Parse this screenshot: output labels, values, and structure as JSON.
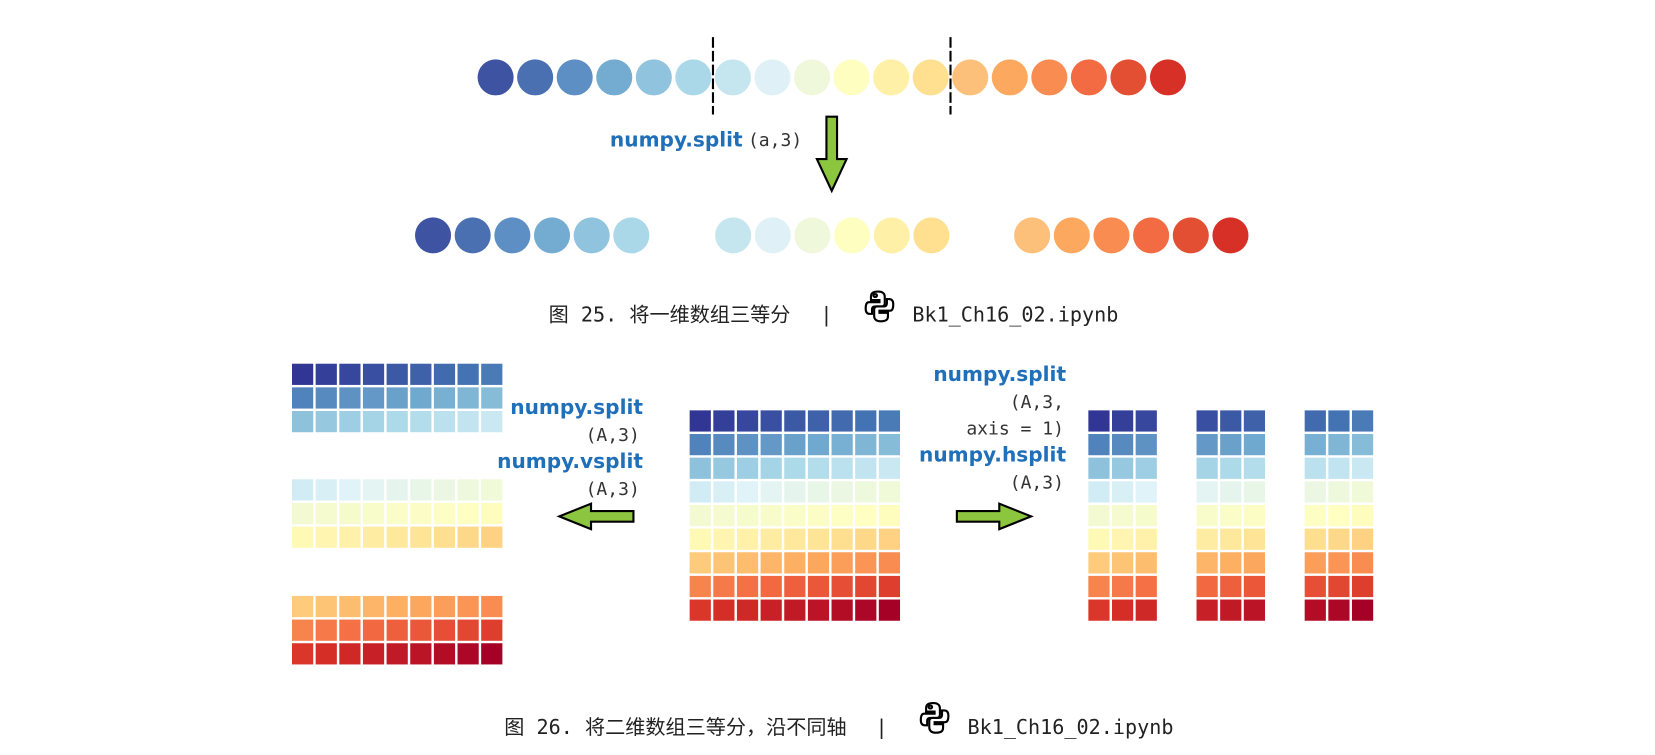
{
  "figure_25": {
    "function": "numpy.split",
    "args": "(a,3)",
    "caption": {
      "label": "图 25. 将一维数组三等分",
      "separator": "|",
      "file": "Bk1_Ch16_02.ipynb"
    }
  },
  "figure_26": {
    "vsplit_labels": [
      "numpy.split",
      "(A,3)",
      "numpy.vsplit",
      "(A,3)"
    ],
    "hsplit_labels": [
      "numpy.split",
      "(A,3,",
      "axis = 1)",
      "numpy.hsplit",
      "(A,3)"
    ],
    "caption": {
      "label": "图 26. 将二维数组三等分，沿不同轴",
      "separator": "|",
      "file": "Bk1_Ch16_02.ipynb"
    }
  }
}
